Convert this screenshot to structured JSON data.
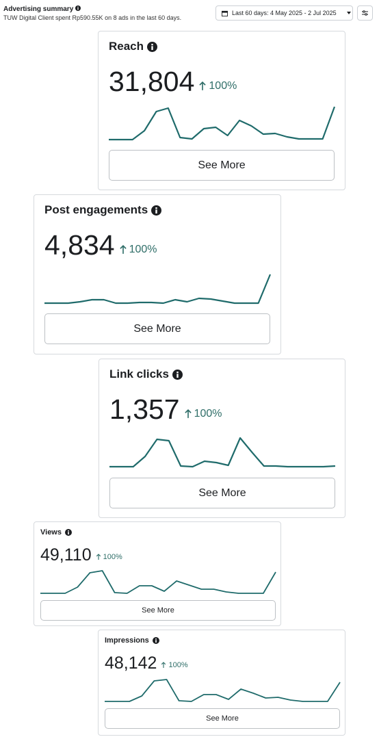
{
  "header": {
    "title": "Advertising summary",
    "subtitle": "TUW Digital Client spent Rp590.55K on 8 ads in the last 60 days.",
    "date_range": "Last 60 days: 4 May 2025 - 2 Jul 2025"
  },
  "cards": [
    {
      "title": "Reach",
      "value": "31,804",
      "change": "100%",
      "button": "See More",
      "sparkline": [
        7,
        7,
        7,
        20,
        48,
        53,
        10,
        8,
        23,
        25,
        13,
        35,
        27,
        15,
        16,
        11,
        8,
        8,
        8,
        55
      ]
    },
    {
      "title": "Post engagements",
      "value": "4,834",
      "change": "100%",
      "button": "See More",
      "sparkline": [
        8,
        8,
        8,
        10,
        13,
        13,
        8,
        8,
        9,
        9,
        8,
        13,
        10,
        15,
        14,
        11,
        8,
        8,
        8,
        50
      ]
    },
    {
      "title": "Link clicks",
      "value": "1,357",
      "change": "100%",
      "button": "See More",
      "sparkline": [
        9,
        9,
        9,
        24,
        49,
        47,
        10,
        9,
        17,
        15,
        11,
        51,
        30,
        10,
        10,
        9,
        9,
        9,
        9,
        10
      ]
    },
    {
      "title": "Views",
      "value": "49,110",
      "change": "100%",
      "button": "See More",
      "sparkline": [
        4,
        4,
        4,
        13,
        34,
        37,
        5,
        4,
        15,
        15,
        7,
        22,
        16,
        10,
        10,
        6,
        4,
        4,
        4,
        35
      ]
    },
    {
      "title": "Impressions",
      "value": "48,142",
      "change": "100%",
      "button": "See More",
      "sparkline": [
        6,
        6,
        6,
        14,
        36,
        38,
        7,
        6,
        16,
        16,
        9,
        24,
        18,
        11,
        12,
        8,
        6,
        6,
        6,
        34
      ]
    }
  ]
}
